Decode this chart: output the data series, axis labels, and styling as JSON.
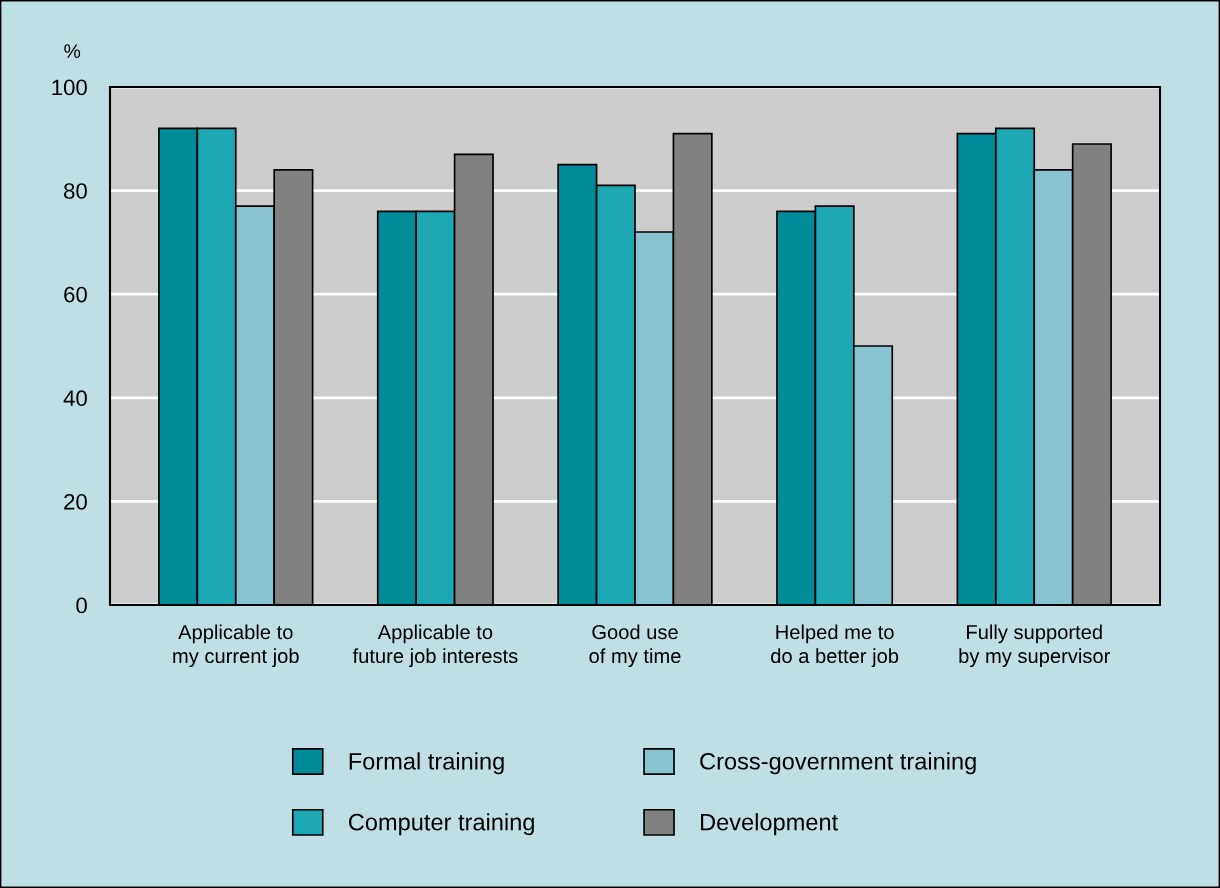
{
  "chart_data": {
    "type": "bar",
    "ylabel": "%",
    "categories": [
      "Applicable to\nmy current job",
      "Applicable to\nfuture job interests",
      "Good use\nof my time",
      "Helped me to\ndo a better job",
      "Fully supported\nby my supervisor"
    ],
    "series": [
      {
        "name": "Formal training",
        "color": "#008b98",
        "values": [
          92,
          76,
          85,
          76,
          91
        ]
      },
      {
        "name": "Computer training",
        "color": "#1da7b4",
        "values": [
          92,
          76,
          81,
          77,
          92
        ]
      },
      {
        "name": "Cross-government training",
        "color": "#88c4cf",
        "values": [
          77,
          null,
          72,
          50,
          84
        ]
      },
      {
        "name": "Development",
        "color": "#818181",
        "values": [
          84,
          87,
          91,
          null,
          89
        ]
      }
    ],
    "ylim": [
      0,
      100
    ],
    "yticks": [
      0,
      20,
      40,
      60,
      80,
      100
    ],
    "grid": "y",
    "legend": "bottom"
  }
}
